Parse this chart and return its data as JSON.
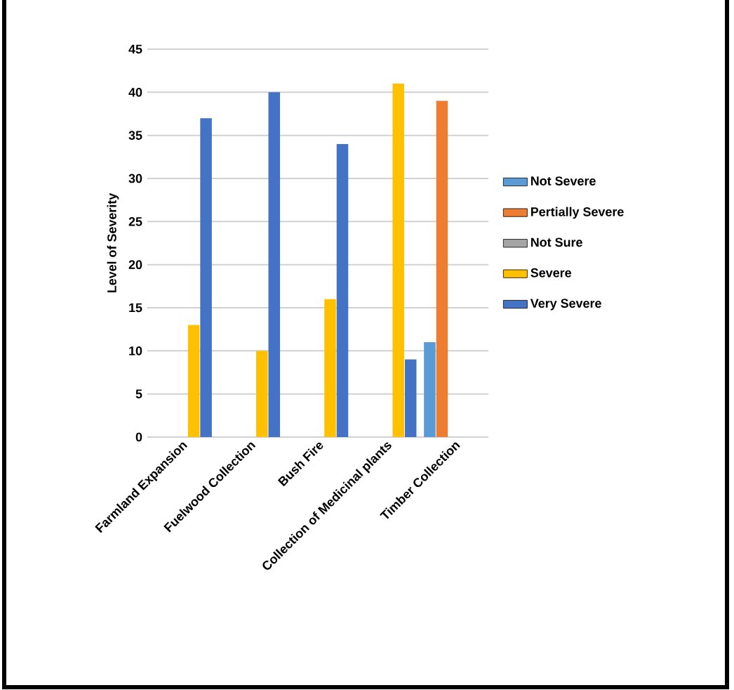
{
  "chart_data": {
    "type": "bar",
    "ylabel": "Level of Severity",
    "categories": [
      "Farmland Expansion",
      "Fuelwood Collection",
      "Bush Fire",
      "Collection of Medicinal plants",
      "Timber Collection"
    ],
    "series": [
      {
        "name": "Not Severe",
        "color": "#5b9bd5",
        "values": [
          null,
          null,
          null,
          null,
          11
        ]
      },
      {
        "name": "Pertially Severe",
        "color": "#ed7d31",
        "values": [
          null,
          null,
          null,
          null,
          39
        ]
      },
      {
        "name": "Not Sure",
        "color": "#a5a5a5",
        "values": [
          null,
          null,
          null,
          null,
          null
        ]
      },
      {
        "name": "Severe",
        "color": "#ffc000",
        "values": [
          13,
          10,
          16,
          41,
          null
        ]
      },
      {
        "name": "Very Severe",
        "color": "#4472c4",
        "values": [
          37,
          40,
          34,
          9,
          null
        ]
      }
    ],
    "ylim": [
      0,
      45
    ],
    "yticks": [
      0,
      5,
      10,
      15,
      20,
      25,
      30,
      35,
      40,
      45
    ],
    "grid": "y",
    "legend": "right"
  }
}
